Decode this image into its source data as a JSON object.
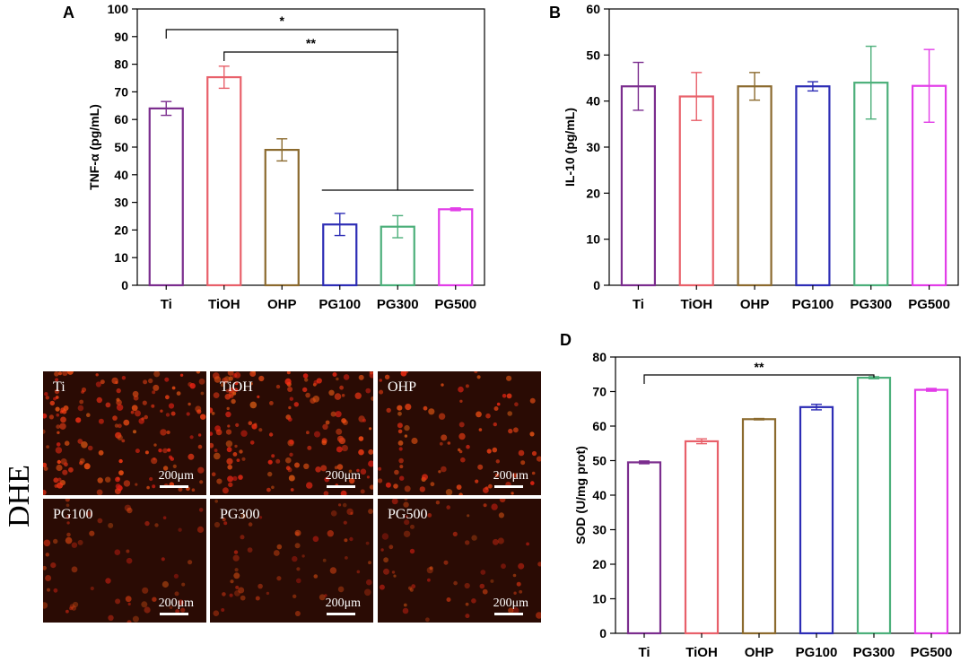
{
  "chart_data": [
    {
      "panel": "A",
      "type": "bar",
      "categories": [
        "Ti",
        "TiOH",
        "OHP",
        "PG100",
        "PG300",
        "PG500"
      ],
      "values": [
        64,
        75.3,
        49,
        22,
        21.2,
        27.5
      ],
      "errors": [
        2.5,
        4,
        4,
        4,
        4,
        0.5
      ],
      "colors": [
        "#7b2d8e",
        "#e8606a",
        "#8b6a2e",
        "#2d2db5",
        "#4caf7a",
        "#e23de8"
      ],
      "xlabel": "",
      "ylabel": "TNF-α (pg/mL)",
      "ylim": [
        0,
        100
      ],
      "yticks": [
        0,
        10,
        20,
        30,
        40,
        50,
        60,
        70,
        80,
        90,
        100
      ],
      "significance": [
        {
          "label": "*",
          "from": "Ti",
          "to": "PG300"
        },
        {
          "label": "**",
          "from": "TiOH",
          "to": "PG300"
        }
      ]
    },
    {
      "panel": "B",
      "type": "bar",
      "categories": [
        "Ti",
        "TiOH",
        "OHP",
        "PG100",
        "PG300",
        "PG500"
      ],
      "values": [
        43.2,
        41,
        43.2,
        43.2,
        44,
        43.3
      ],
      "errors": [
        5.2,
        5.2,
        3,
        1,
        7.9,
        7.9
      ],
      "colors": [
        "#7b2d8e",
        "#e8606a",
        "#8b6a2e",
        "#2d2db5",
        "#4caf7a",
        "#e23de8"
      ],
      "xlabel": "",
      "ylabel": "IL-10 (pg/mL)",
      "ylim": [
        0,
        60
      ],
      "yticks": [
        0,
        10,
        20,
        30,
        40,
        50,
        60
      ]
    },
    {
      "panel": "D",
      "type": "bar",
      "categories": [
        "Ti",
        "TiOH",
        "OHP",
        "PG100",
        "PG300",
        "PG500"
      ],
      "values": [
        49.5,
        55.6,
        62,
        65.5,
        74,
        70.5
      ],
      "errors": [
        0.4,
        0.7,
        0.2,
        0.8,
        0.3,
        0.4
      ],
      "colors": [
        "#7b2d8e",
        "#e8606a",
        "#8b6a2e",
        "#2d2db5",
        "#4caf7a",
        "#e23de8"
      ],
      "xlabel": "",
      "ylabel": "SOD (U/mg prot)",
      "ylim": [
        0,
        80
      ],
      "yticks": [
        0,
        10,
        20,
        30,
        40,
        50,
        60,
        70,
        80
      ],
      "significance": [
        {
          "label": "**",
          "from": "Ti",
          "to": "PG300"
        }
      ]
    }
  ],
  "dhe_panel": {
    "side_label": "DHE",
    "tiles": [
      {
        "label": "Ti",
        "scale": "200μm",
        "density": "high"
      },
      {
        "label": "TiOH",
        "scale": "200μm",
        "density": "high"
      },
      {
        "label": "OHP",
        "scale": "200μm",
        "density": "medium"
      },
      {
        "label": "PG100",
        "scale": "200μm",
        "density": "low"
      },
      {
        "label": "PG300",
        "scale": "200μm",
        "density": "low"
      },
      {
        "label": "PG500",
        "scale": "200μm",
        "density": "low"
      }
    ]
  }
}
